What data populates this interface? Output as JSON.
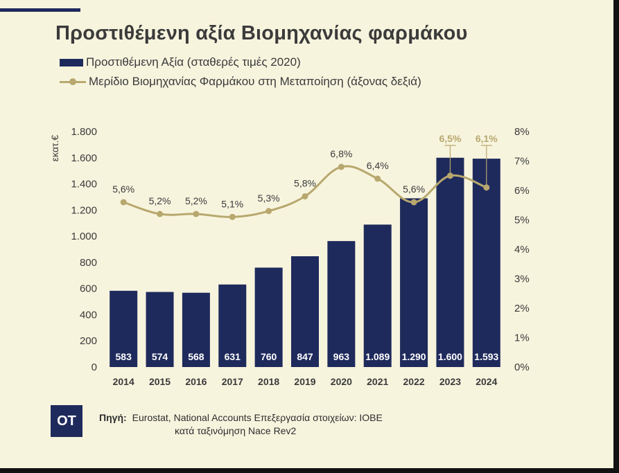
{
  "title": "Προστιθέμενη αξία Βιομηχανίας φαρμάκου",
  "legend": {
    "bar_label": "Προστιθέμενη Αξία (σταθερές τιμές 2020)",
    "line_label": "Μερίδιο Βιομηχανίας Φαρμάκου στη Μεταποίηση (άξονας δεξιά)"
  },
  "colors": {
    "bar": "#1f2a5c",
    "line": "#b8a86e",
    "text": "#3a3a3a",
    "background": "#f7f4de"
  },
  "chart_data": {
    "type": "bar",
    "categories": [
      "2014",
      "2015",
      "2016",
      "2017",
      "2018",
      "2019",
      "2020",
      "2021",
      "2022",
      "2023",
      "2024"
    ],
    "series": [
      {
        "name": "Προστιθέμενη Αξία (σταθερές τιμές 2020)",
        "type": "bar",
        "axis": "left",
        "values": [
          583,
          574,
          568,
          631,
          760,
          847,
          963,
          1089,
          1290,
          1600,
          1593
        ],
        "labels": [
          "583",
          "574",
          "568",
          "631",
          "760",
          "847",
          "963",
          "1.089",
          "1.290",
          "1.600",
          "1.593"
        ]
      },
      {
        "name": "Μερίδιο Βιομηχανίας Φαρμάκου στη Μεταποίηση (άξονας δεξιά)",
        "type": "line",
        "axis": "right",
        "values": [
          5.6,
          5.2,
          5.2,
          5.1,
          5.3,
          5.8,
          6.8,
          6.4,
          5.6,
          6.5,
          6.1
        ],
        "labels": [
          "5,6%",
          "5,2%",
          "5,2%",
          "5,1%",
          "5,3%",
          "5,8%",
          "6,8%",
          "6,4%",
          "5,6%",
          "6,5%",
          "6,1%"
        ]
      }
    ],
    "ylabel": "εκατ.€",
    "ylim": [
      0,
      1800
    ],
    "y_ticks": [
      0,
      200,
      400,
      600,
      800,
      1000,
      1200,
      1400,
      1600,
      1800
    ],
    "y_tick_labels": [
      "0",
      "200",
      "400",
      "600",
      "800",
      "1.000",
      "1.200",
      "1.400",
      "1.600",
      "1.800"
    ],
    "y2lim": [
      0,
      8
    ],
    "y2_ticks": [
      0,
      1,
      2,
      3,
      4,
      5,
      6,
      7,
      8
    ],
    "y2_tick_labels": [
      "0%",
      "1%",
      "2%",
      "3%",
      "4%",
      "5%",
      "6%",
      "7%",
      "8%"
    ],
    "highlighted_categories": [
      "2023",
      "2024"
    ],
    "grid": false,
    "legend_position": "top-left"
  },
  "source": {
    "logo_text": "ΟΤ",
    "label": "Πηγή:",
    "line1": "Eurostat, National Accounts Επεξεργασία στοιχείων: ΙΟΒΕ",
    "line2": "κατά ταξινόμηση Nace Rev2"
  }
}
